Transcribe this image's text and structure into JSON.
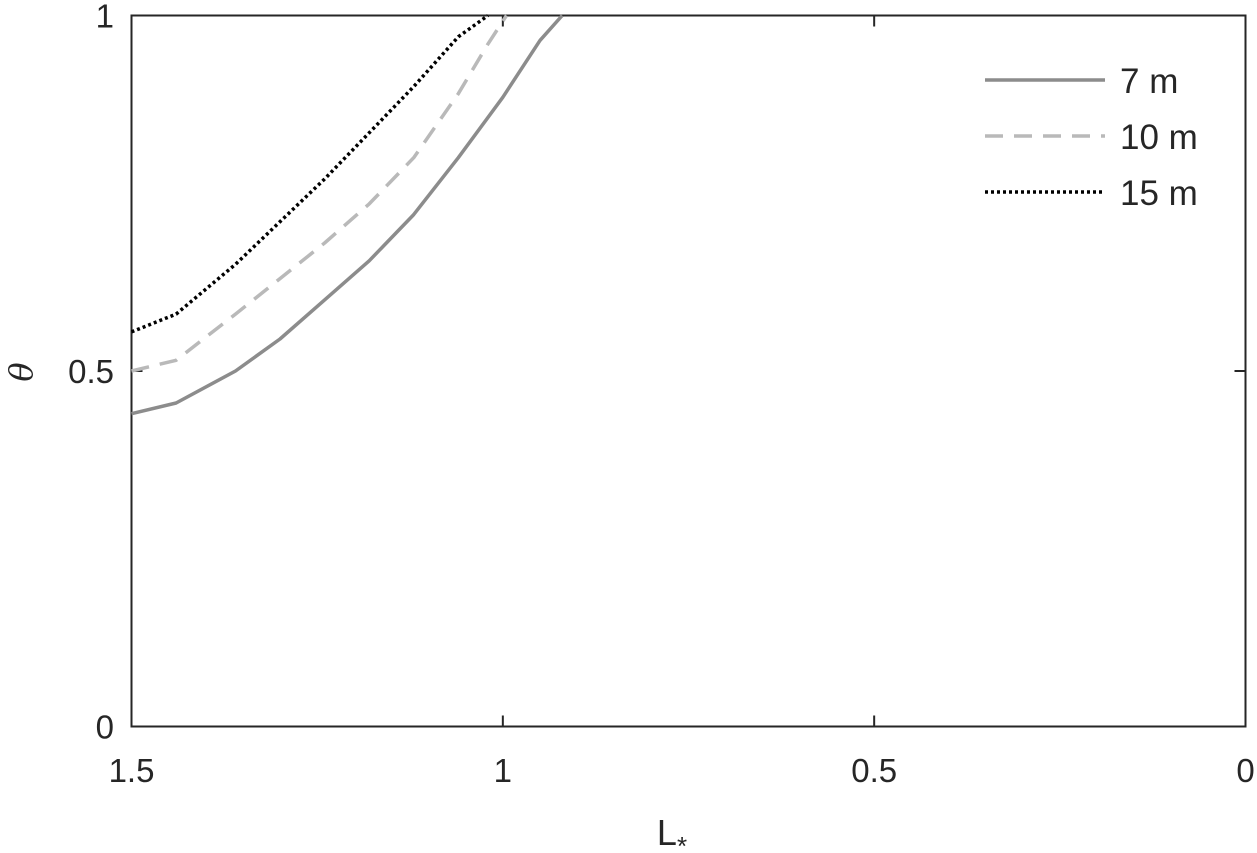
{
  "chart_data": {
    "type": "line",
    "xlabel": "L",
    "xlabel_subscript": "*",
    "ylabel": "θ",
    "xlim": [
      0,
      1.5
    ],
    "x_reversed": true,
    "ylim": [
      0,
      1
    ],
    "x_ticks": [
      "1.5",
      "1",
      "0.5",
      "0"
    ],
    "y_ticks": [
      "0",
      "0.5",
      "1"
    ],
    "grid": false,
    "legend_position": "top-right",
    "series": [
      {
        "name": "7 m",
        "style": "solid",
        "color": "#8c8c8c",
        "x": [
          1.5,
          1.44,
          1.36,
          1.3,
          1.24,
          1.18,
          1.12,
          1.06,
          1.0,
          0.95,
          0.92
        ],
        "y": [
          0.44,
          0.455,
          0.5,
          0.545,
          0.6,
          0.655,
          0.72,
          0.8,
          0.885,
          0.965,
          1.0
        ]
      },
      {
        "name": "10 m",
        "style": "dashed",
        "color": "#b9b9b9",
        "x": [
          1.5,
          1.44,
          1.36,
          1.3,
          1.24,
          1.18,
          1.12,
          1.06,
          1.02,
          0.995
        ],
        "y": [
          0.5,
          0.515,
          0.58,
          0.63,
          0.68,
          0.735,
          0.8,
          0.89,
          0.96,
          1.0
        ]
      },
      {
        "name": "15 m",
        "style": "dotted",
        "color": "#000000",
        "x": [
          1.5,
          1.44,
          1.36,
          1.3,
          1.24,
          1.18,
          1.12,
          1.06,
          1.02
        ],
        "y": [
          0.555,
          0.58,
          0.65,
          0.71,
          0.77,
          0.835,
          0.9,
          0.97,
          1.0
        ]
      }
    ]
  }
}
